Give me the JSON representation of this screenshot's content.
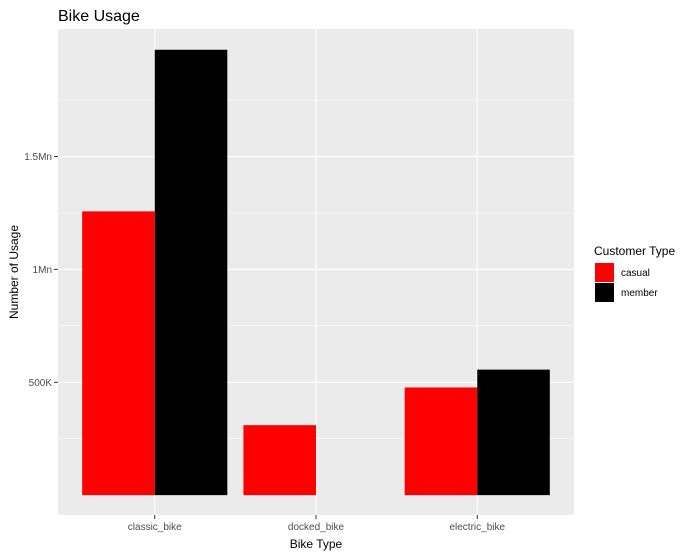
{
  "chart_data": {
    "type": "bar",
    "title": "Bike Usage",
    "xlabel": "Bike Type",
    "ylabel": "Number of Usage",
    "categories": [
      "classic_bike",
      "docked_bike",
      "electric_bike"
    ],
    "series": [
      {
        "name": "casual",
        "color": "#ff0000",
        "values": [
          1257000,
          310000,
          477000
        ]
      },
      {
        "name": "member",
        "color": "#000000",
        "values": [
          1973000,
          0,
          556000
        ]
      }
    ],
    "ylim": [
      -88000,
      2065000
    ],
    "yticks": [
      {
        "value": 500000,
        "label": "500K"
      },
      {
        "value": 1000000,
        "label": "1Mn"
      },
      {
        "value": 1500000,
        "label": "1.5Mn"
      }
    ],
    "grid": true,
    "legend": {
      "title": "Customer Type",
      "position": "right"
    }
  }
}
